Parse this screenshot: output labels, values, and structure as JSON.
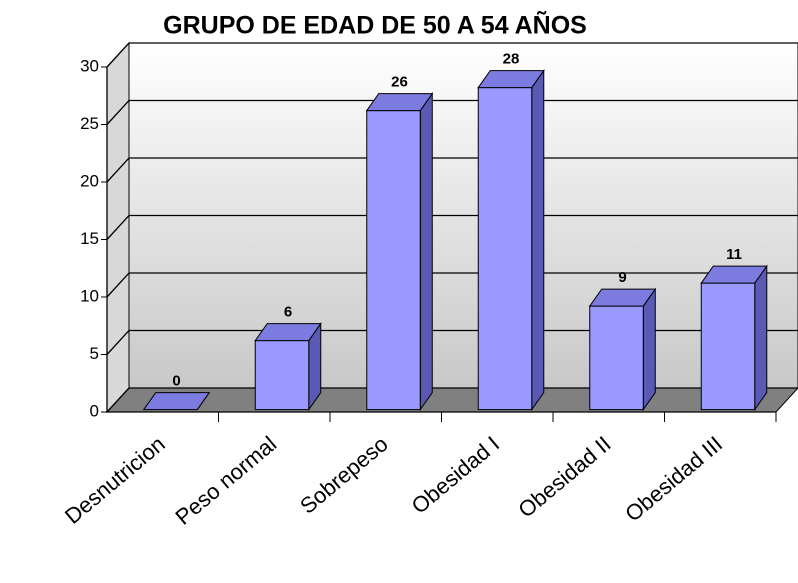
{
  "chart_data": {
    "type": "bar",
    "title": "GRUPO DE EDAD DE  50 A 54 AÑOS",
    "categories": [
      "Desnutricion",
      "Peso normal",
      "Sobrepeso",
      "Obesidad I",
      "Obesidad II",
      "Obesidad III"
    ],
    "values": [
      0,
      6,
      26,
      28,
      9,
      11
    ],
    "color": "#9999ff",
    "ylim": [
      0,
      30
    ],
    "yticks": [
      0,
      5,
      10,
      15,
      20,
      25,
      30
    ],
    "grid": true
  }
}
